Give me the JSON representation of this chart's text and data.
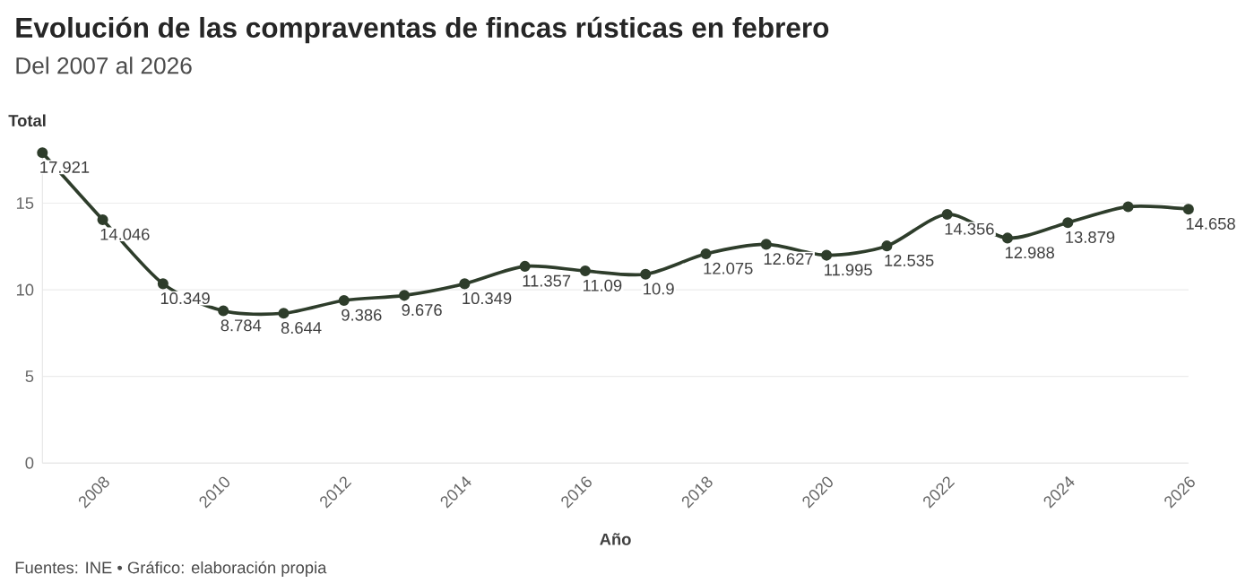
{
  "chart_data": {
    "type": "line",
    "title": "Evolución de las compraventas de fincas rústicas en febrero",
    "subtitle": "Del 2007 al 2026",
    "xlabel": "Año",
    "ylabel": "Total",
    "x": [
      2007,
      2008,
      2009,
      2010,
      2011,
      2012,
      2013,
      2014,
      2015,
      2016,
      2017,
      2018,
      2019,
      2020,
      2021,
      2022,
      2023,
      2024,
      2025,
      2026
    ],
    "values": [
      17.921,
      14.046,
      10.349,
      8.784,
      8.644,
      9.386,
      9.676,
      10.349,
      11.357,
      11.09,
      10.9,
      12.075,
      12.627,
      11.995,
      12.535,
      14.356,
      12.988,
      13.879,
      14.8,
      14.658
    ],
    "value_labels": [
      "17.921",
      "14.046",
      "10.349",
      "8.784",
      "8.644",
      "9.386",
      "9.676",
      "10.349",
      "11.357",
      "11.09",
      "10.9",
      "12.075",
      "12.627",
      "11.995",
      "12.535",
      "14.356",
      "12.988",
      "13.879",
      null,
      "14.658"
    ],
    "color": "#2e3d2b",
    "marker": "circle",
    "grid": "y",
    "xlim": [
      2007,
      2026
    ],
    "ylim": [
      0,
      18
    ],
    "xticks": [
      2008,
      2010,
      2012,
      2014,
      2016,
      2018,
      2020,
      2022,
      2024,
      2026
    ],
    "yticks": [
      0,
      5,
      10,
      15
    ],
    "annotations": [
      "Fuentes: INE • Gráfico: elaboración propia"
    ]
  }
}
